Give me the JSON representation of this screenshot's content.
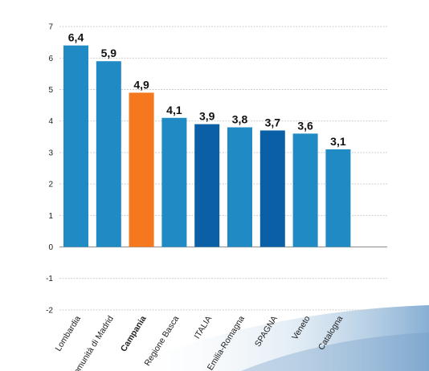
{
  "chart_data": {
    "type": "bar",
    "categories": [
      "Lombardia",
      "Comunità di Madrid",
      "Campania",
      "Regione Basca",
      "ITALIA",
      "Emilia-Romagna",
      "SPAGNA",
      "Veneto",
      "Catalogna"
    ],
    "values": [
      6.4,
      5.9,
      4.9,
      4.1,
      3.9,
      3.8,
      3.7,
      3.6,
      3.1
    ],
    "value_labels": [
      "6,4",
      "5,9",
      "4,9",
      "4,1",
      "3,9",
      "3,8",
      "3,7",
      "3,6",
      "3,1"
    ],
    "bar_colors": [
      "#1f8ac4",
      "#1f8ac4",
      "#f5781f",
      "#1f8ac4",
      "#0b5fa6",
      "#1f8ac4",
      "#0b5fa6",
      "#1f8ac4",
      "#1f8ac4"
    ],
    "bold_categories": [
      "Campania"
    ],
    "yticks": [
      7,
      6,
      5,
      4,
      3,
      2,
      1,
      0,
      -1,
      -2
    ],
    "ylim": [
      -2,
      7
    ],
    "grid": true,
    "title": "",
    "xlabel": "",
    "ylabel": ""
  }
}
